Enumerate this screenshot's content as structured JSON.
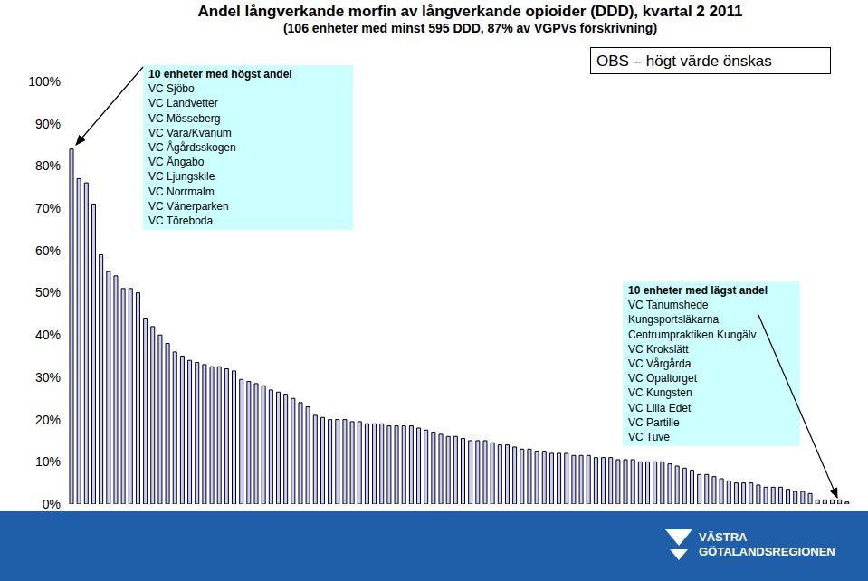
{
  "chart_data": {
    "type": "bar",
    "title": "Andel långverkande morfin av långverkande opioider (DDD), kvartal 2 2011",
    "subtitle": "(106 enheter med minst 595 DDD, 87% av VGPVs förskrivning)",
    "categories": [
      null,
      null,
      null,
      null,
      null,
      null,
      null,
      null,
      null,
      null,
      null,
      null,
      null,
      null,
      null,
      null,
      null,
      null,
      null,
      null,
      null,
      null,
      null,
      null,
      null,
      null,
      null,
      null,
      null,
      null,
      null,
      null,
      null,
      null,
      null,
      null,
      null,
      null,
      null,
      null,
      null,
      null,
      null,
      null,
      null,
      null,
      null,
      null,
      null,
      null,
      null,
      null,
      null,
      null,
      null,
      null,
      null,
      null,
      null,
      null,
      null,
      null,
      null,
      null,
      null,
      null,
      null,
      null,
      null,
      null,
      null,
      null,
      null,
      null,
      null,
      null,
      null,
      null,
      null,
      null,
      null,
      null,
      null,
      null,
      null,
      null,
      null,
      null,
      null,
      null,
      null,
      null,
      null,
      null,
      null,
      null,
      null,
      null,
      null,
      null,
      null,
      null,
      null,
      null,
      null,
      null
    ],
    "values": [
      84,
      77,
      76,
      71,
      59,
      55,
      54,
      51,
      51,
      50,
      44,
      42,
      40,
      38,
      36,
      35,
      34,
      33.5,
      33,
      32.5,
      32.5,
      32,
      31.5,
      29.5,
      29,
      28.5,
      28,
      27,
      26.5,
      26,
      25,
      24,
      23,
      21,
      20.5,
      20,
      20,
      20,
      19.5,
      19.5,
      19,
      19,
      19,
      18.5,
      18.5,
      18.5,
      18.5,
      18,
      17.5,
      17,
      16.5,
      16,
      16,
      15.5,
      15,
      15,
      15,
      14.5,
      14,
      14,
      13.5,
      13,
      13,
      12.5,
      12.5,
      12,
      12,
      12,
      11.5,
      11.5,
      11.5,
      11,
      11,
      11,
      10.5,
      10.5,
      10.5,
      10,
      10,
      10,
      10,
      9.5,
      9,
      8.5,
      8,
      7,
      7,
      6.5,
      6,
      5.5,
      5,
      5,
      5,
      4.5,
      4,
      4,
      4,
      3.5,
      3,
      3,
      2.5,
      1,
      1,
      1,
      1,
      0.5
    ],
    "color": "#ccccff",
    "ylim": [
      0,
      100
    ],
    "yticks": [
      {
        "value": 0,
        "label": "0%"
      },
      {
        "value": 10,
        "label": "10%"
      },
      {
        "value": 20,
        "label": "20%"
      },
      {
        "value": 30,
        "label": "30%"
      },
      {
        "value": 40,
        "label": "40%"
      },
      {
        "value": 50,
        "label": "50%"
      },
      {
        "value": 60,
        "label": "60%"
      },
      {
        "value": 70,
        "label": "70%"
      },
      {
        "value": 80,
        "label": "80%"
      },
      {
        "value": 90,
        "label": "90%"
      },
      {
        "value": 100,
        "label": "100%"
      }
    ],
    "grid": false,
    "tick_labels": "y",
    "annotations": [
      {
        "title": "10 enheter med högst andel",
        "items": [
          "VC Sjöbo",
          "VC Landvetter",
          "VC Mösseberg",
          "VC Vara/Kvänum",
          "VC Ågårdsskogen",
          "VC Ängabo",
          "VC Ljungskile",
          "VC Norrmalm",
          "VC Vänerparken",
          "VC Töreboda"
        ]
      },
      {
        "title": "10 enheter med lägst andel",
        "items": [
          "VC Tanumshede",
          "Kungsportsläkarna",
          "Centrumpraktiken Kungälv",
          "VC Krokslätt",
          "VC Vårgårda",
          "VC Opaltorget",
          "VC Kungsten",
          "VC Lilla Edet",
          "VC Partille",
          "VC Tuve"
        ]
      }
    ],
    "note": "OBS – högt värde önskas",
    "logo_text": [
      "VÄSTRA",
      "GÖTALANDSREGIONEN"
    ]
  }
}
